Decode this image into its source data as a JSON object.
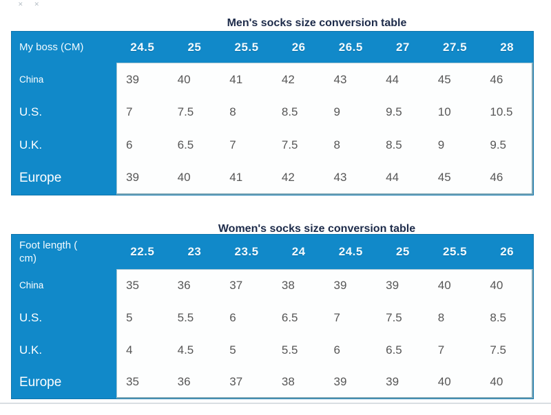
{
  "colors": {
    "table_blue": "#1189c9",
    "table_blue_edge": "#0d74ac",
    "panel_border": "#7fa8b6",
    "title_text": "#1d2b4a",
    "header_text": "#ffffff",
    "cell_text": "#565656"
  },
  "decorations": {
    "corner_marks": [
      "✕",
      "✕"
    ]
  },
  "chart_data": [
    {
      "type": "table",
      "title": "Men's socks size conversion table",
      "row_header": "My boss (CM)",
      "columns": [
        "24.5",
        "25",
        "25.5",
        "26",
        "26.5",
        "27",
        "27.5",
        "28"
      ],
      "rows": [
        {
          "label": "China",
          "values": [
            "39",
            "40",
            "41",
            "42",
            "43",
            "44",
            "45",
            "46"
          ]
        },
        {
          "label": "U.S.",
          "values": [
            "7",
            "7.5",
            "8",
            "8.5",
            "9",
            "9.5",
            "10",
            "10.5"
          ]
        },
        {
          "label": "U.K.",
          "values": [
            "6",
            "6.5",
            "7",
            "7.5",
            "8",
            "8.5",
            "9",
            "9.5"
          ]
        },
        {
          "label": "Europe",
          "values": [
            "39",
            "40",
            "41",
            "42",
            "43",
            "44",
            "45",
            "46"
          ]
        }
      ]
    },
    {
      "type": "table",
      "title": "Women's socks size conversion table",
      "row_header": "Foot length ( cm)",
      "columns": [
        "22.5",
        "23",
        "23.5",
        "24",
        "24.5",
        "25",
        "25.5",
        "26"
      ],
      "rows": [
        {
          "label": "China",
          "values": [
            "35",
            "36",
            "37",
            "38",
            "39",
            "39",
            "40",
            "40"
          ]
        },
        {
          "label": "U.S.",
          "values": [
            "5",
            "5.5",
            "6",
            "6.5",
            "7",
            "7.5",
            "8",
            "8.5"
          ]
        },
        {
          "label": "U.K.",
          "values": [
            "4",
            "4.5",
            "5",
            "5.5",
            "6",
            "6.5",
            "7",
            "7.5"
          ]
        },
        {
          "label": "Europe",
          "values": [
            "35",
            "36",
            "37",
            "38",
            "39",
            "39",
            "40",
            "40"
          ]
        }
      ]
    }
  ]
}
